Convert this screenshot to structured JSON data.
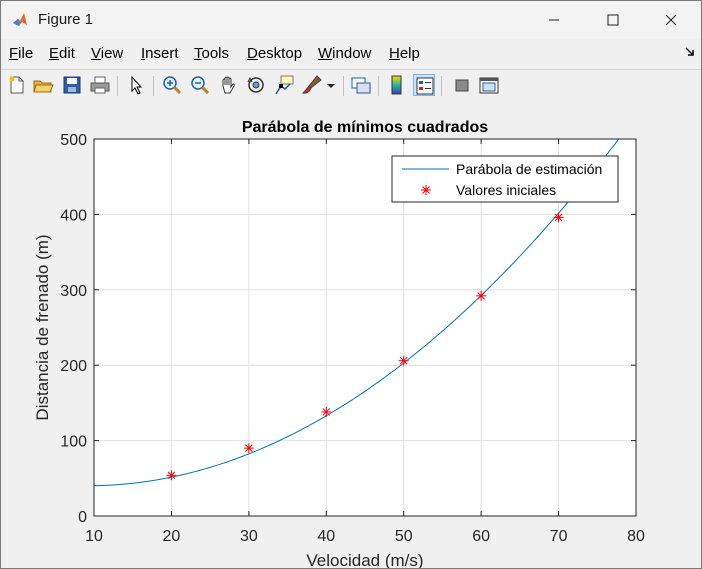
{
  "window": {
    "title": "Figure 1",
    "icon": "matlab-logo-icon",
    "controls": [
      "minimize-icon",
      "maximize-icon",
      "close-icon"
    ]
  },
  "menu": {
    "items": [
      {
        "label": "File",
        "key": "F"
      },
      {
        "label": "Edit",
        "key": "E"
      },
      {
        "label": "View",
        "key": "V"
      },
      {
        "label": "Insert",
        "key": "I"
      },
      {
        "label": "Tools",
        "key": "T"
      },
      {
        "label": "Desktop",
        "key": "D"
      },
      {
        "label": "Window",
        "key": "W"
      },
      {
        "label": "Help",
        "key": "H"
      }
    ]
  },
  "toolbar": {
    "buttons": [
      "new-figure-icon",
      "open-file-icon",
      "save-icon",
      "print-icon",
      "edit-plot-icon",
      "zoom-in-icon",
      "zoom-out-icon",
      "pan-icon",
      "rotate-3d-icon",
      "data-cursor-icon",
      "brush-icon",
      "brush-dropdown-icon",
      "link-plot-icon",
      "colorbar-icon",
      "legend-icon",
      "hide-plot-tools-icon",
      "show-plot-tools-icon"
    ],
    "selected": "legend-icon"
  },
  "chart_data": {
    "type": "line",
    "title": "Parábola de mínimos cuadrados",
    "xlabel": "Velocidad (m/s)",
    "ylabel": "Distancia de frenado (m)",
    "xlim": [
      10,
      80
    ],
    "ylim": [
      0,
      500
    ],
    "xticks": [
      10,
      20,
      30,
      40,
      50,
      60,
      70,
      80
    ],
    "yticks": [
      0,
      100,
      200,
      300,
      400,
      500
    ],
    "grid": true,
    "legend_position": "top-right",
    "series": [
      {
        "name": "Parábola de estimación",
        "kind": "line",
        "color": "#0072bd",
        "coefficients": {
          "a": 0.0978,
          "b": -1.8,
          "c": 48.4
        },
        "x_range": [
          10,
          80
        ]
      },
      {
        "name": "Valores iniciales",
        "kind": "scatter",
        "marker": "*",
        "color": "#ff0000",
        "x": [
          20,
          30,
          40,
          50,
          60,
          70
        ],
        "y": [
          54,
          90,
          138,
          206,
          292,
          396
        ]
      }
    ]
  }
}
